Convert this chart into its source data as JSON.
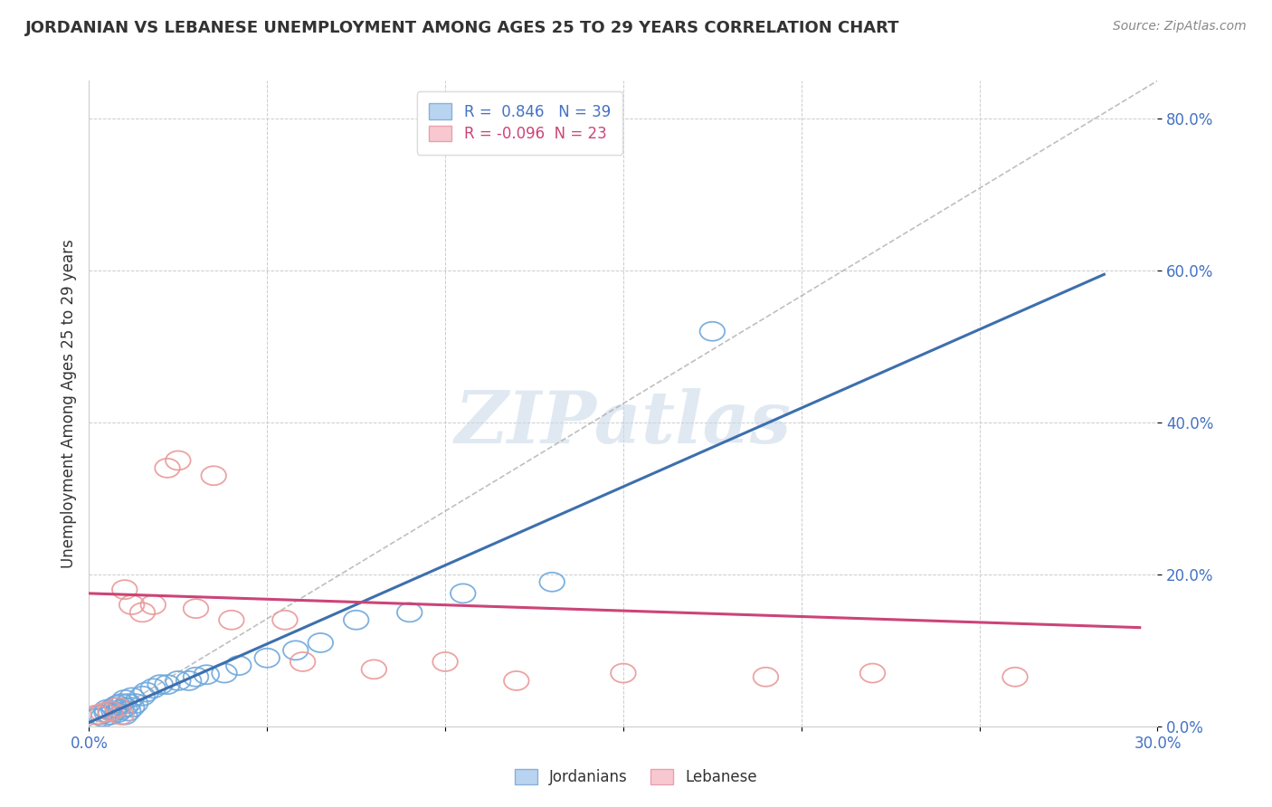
{
  "title": "JORDANIAN VS LEBANESE UNEMPLOYMENT AMONG AGES 25 TO 29 YEARS CORRELATION CHART",
  "source": "Source: ZipAtlas.com",
  "ylabel": "Unemployment Among Ages 25 to 29 years",
  "R_jordan": 0.846,
  "N_jordan": 39,
  "R_lebanese": -0.096,
  "N_lebanese": 23,
  "x_min": 0.0,
  "x_max": 0.3,
  "y_min": 0.0,
  "y_max": 0.85,
  "yticks": [
    0.0,
    0.2,
    0.4,
    0.6,
    0.8
  ],
  "ytick_labels": [
    "0.0%",
    "20.0%",
    "40.0%",
    "60.0%",
    "80.0%"
  ],
  "xticks": [
    0.0,
    0.05,
    0.1,
    0.15,
    0.2,
    0.25,
    0.3
  ],
  "xtick_labels": [
    "0.0%",
    "",
    "",
    "",
    "",
    "",
    "30.0%"
  ],
  "blue_color": "#6fa8dc",
  "pink_color": "#ea9999",
  "blue_line_color": "#3d6fad",
  "pink_line_color": "#cc4477",
  "watermark": "ZIPatlas",
  "watermark_color": "#c8d8e8",
  "jordan_points_x": [
    0.002,
    0.003,
    0.004,
    0.005,
    0.005,
    0.006,
    0.007,
    0.007,
    0.008,
    0.008,
    0.009,
    0.009,
    0.01,
    0.01,
    0.01,
    0.011,
    0.011,
    0.012,
    0.012,
    0.013,
    0.015,
    0.016,
    0.018,
    0.02,
    0.022,
    0.025,
    0.028,
    0.03,
    0.033,
    0.038,
    0.042,
    0.05,
    0.058,
    0.065,
    0.075,
    0.09,
    0.105,
    0.13,
    0.175
  ],
  "jordan_points_y": [
    0.01,
    0.015,
    0.012,
    0.018,
    0.022,
    0.015,
    0.02,
    0.025,
    0.018,
    0.028,
    0.022,
    0.03,
    0.015,
    0.025,
    0.035,
    0.02,
    0.03,
    0.025,
    0.038,
    0.03,
    0.04,
    0.045,
    0.05,
    0.055,
    0.055,
    0.06,
    0.06,
    0.065,
    0.068,
    0.07,
    0.08,
    0.09,
    0.1,
    0.11,
    0.14,
    0.15,
    0.175,
    0.19,
    0.52
  ],
  "lebanese_points_x": [
    0.002,
    0.004,
    0.006,
    0.008,
    0.009,
    0.01,
    0.012,
    0.015,
    0.018,
    0.022,
    0.025,
    0.03,
    0.035,
    0.04,
    0.055,
    0.06,
    0.08,
    0.1,
    0.12,
    0.15,
    0.19,
    0.22,
    0.26
  ],
  "lebanese_points_y": [
    0.015,
    0.018,
    0.02,
    0.025,
    0.015,
    0.18,
    0.16,
    0.15,
    0.16,
    0.34,
    0.35,
    0.155,
    0.33,
    0.14,
    0.14,
    0.085,
    0.075,
    0.085,
    0.06,
    0.07,
    0.065,
    0.07,
    0.065
  ],
  "jordan_line_x": [
    0.0,
    0.285
  ],
  "jordan_line_y": [
    0.005,
    0.595
  ],
  "lebanese_line_x": [
    0.0,
    0.295
  ],
  "lebanese_line_y": [
    0.175,
    0.13
  ],
  "dashed_line_x": [
    0.0,
    0.3
  ],
  "dashed_line_y": [
    0.0,
    0.85
  ]
}
